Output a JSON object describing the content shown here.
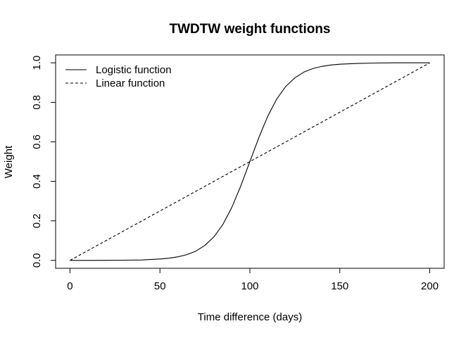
{
  "chart_data": {
    "type": "line",
    "title": "TWDTW weight functions",
    "xlabel": "Time difference (days)",
    "ylabel": "Weight",
    "xlim": [
      -8,
      208
    ],
    "ylim": [
      -0.04,
      1.04
    ],
    "xticks": [
      0,
      50,
      100,
      150,
      200
    ],
    "xtick_labels": [
      "0",
      "50",
      "100",
      "150",
      "200"
    ],
    "yticks": [
      0.0,
      0.2,
      0.4,
      0.6,
      0.8,
      1.0
    ],
    "ytick_labels": [
      "0.0",
      "0.2",
      "0.4",
      "0.6",
      "0.8",
      "1.0"
    ],
    "grid": false,
    "legend_position": "top-left",
    "series": [
      {
        "name": "Logistic function",
        "line_style": "solid",
        "color": "#000000",
        "x": [
          0,
          10,
          20,
          30,
          40,
          50,
          55,
          60,
          65,
          70,
          75,
          80,
          85,
          90,
          95,
          100,
          105,
          110,
          115,
          120,
          125,
          130,
          135,
          140,
          145,
          150,
          160,
          170,
          180,
          190,
          200
        ],
        "y": [
          0.0,
          0.0,
          0.0005,
          0.001,
          0.002,
          0.007,
          0.011,
          0.018,
          0.029,
          0.047,
          0.076,
          0.119,
          0.182,
          0.269,
          0.378,
          0.5,
          0.622,
          0.731,
          0.818,
          0.881,
          0.924,
          0.953,
          0.971,
          0.982,
          0.989,
          0.993,
          0.997,
          0.999,
          1.0,
          1.0,
          1.0
        ]
      },
      {
        "name": "Linear function",
        "line_style": "dashed",
        "color": "#000000",
        "x": [
          0,
          200
        ],
        "y": [
          0.0,
          1.0
        ]
      }
    ]
  }
}
